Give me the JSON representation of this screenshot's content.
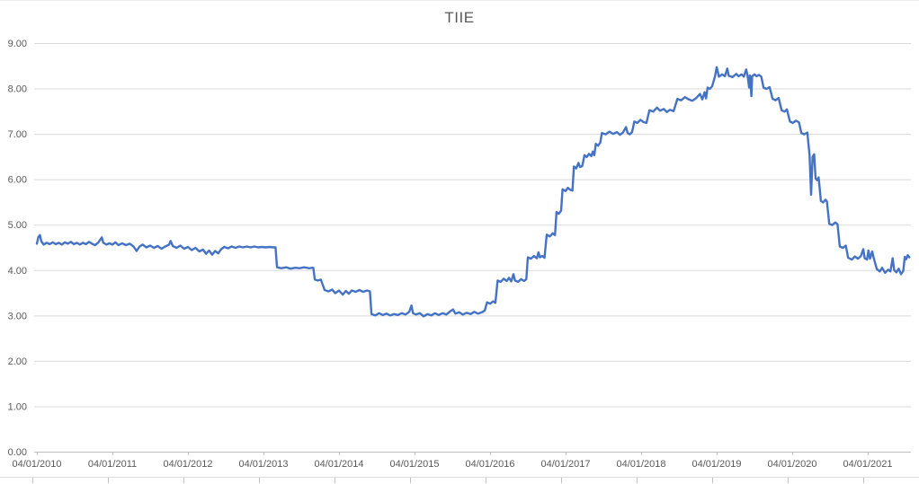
{
  "chart_data": {
    "type": "line",
    "title": "TIIE",
    "legend": "none",
    "grid": "horizontal",
    "ylim": [
      0,
      9
    ],
    "y_tick_step": 1,
    "y_tick_labels": [
      "0.00",
      "1.00",
      "2.00",
      "3.00",
      "4.00",
      "5.00",
      "6.00",
      "7.00",
      "8.00",
      "9.00"
    ],
    "x_tick_labels": [
      "04/01/2010",
      "04/01/2011",
      "04/01/2012",
      "04/01/2013",
      "04/01/2014",
      "04/01/2015",
      "04/01/2016",
      "04/01/2017",
      "04/01/2018",
      "04/01/2019",
      "04/01/2020",
      "04/01/2021"
    ],
    "x_unit": "years since 04/01/2010 (daily interbank rate series)",
    "xlim": [
      0,
      11.57
    ],
    "series": [
      {
        "name": "TIIE",
        "color": "#4472C4",
        "points": [
          [
            0.0,
            4.58
          ],
          [
            0.02,
            4.73
          ],
          [
            0.04,
            4.77
          ],
          [
            0.06,
            4.63
          ],
          [
            0.09,
            4.56
          ],
          [
            0.13,
            4.6
          ],
          [
            0.17,
            4.57
          ],
          [
            0.21,
            4.61
          ],
          [
            0.25,
            4.57
          ],
          [
            0.29,
            4.6
          ],
          [
            0.33,
            4.56
          ],
          [
            0.37,
            4.61
          ],
          [
            0.41,
            4.58
          ],
          [
            0.45,
            4.62
          ],
          [
            0.49,
            4.57
          ],
          [
            0.53,
            4.6
          ],
          [
            0.57,
            4.56
          ],
          [
            0.61,
            4.6
          ],
          [
            0.65,
            4.57
          ],
          [
            0.69,
            4.62
          ],
          [
            0.73,
            4.58
          ],
          [
            0.77,
            4.55
          ],
          [
            0.81,
            4.6
          ],
          [
            0.86,
            4.72
          ],
          [
            0.88,
            4.6
          ],
          [
            0.92,
            4.56
          ],
          [
            0.96,
            4.59
          ],
          [
            1.0,
            4.56
          ],
          [
            1.04,
            4.61
          ],
          [
            1.08,
            4.55
          ],
          [
            1.13,
            4.59
          ],
          [
            1.18,
            4.55
          ],
          [
            1.23,
            4.58
          ],
          [
            1.28,
            4.52
          ],
          [
            1.32,
            4.42
          ],
          [
            1.36,
            4.52
          ],
          [
            1.4,
            4.56
          ],
          [
            1.45,
            4.5
          ],
          [
            1.5,
            4.54
          ],
          [
            1.55,
            4.49
          ],
          [
            1.6,
            4.53
          ],
          [
            1.65,
            4.47
          ],
          [
            1.7,
            4.52
          ],
          [
            1.75,
            4.56
          ],
          [
            1.77,
            4.64
          ],
          [
            1.8,
            4.53
          ],
          [
            1.85,
            4.49
          ],
          [
            1.9,
            4.54
          ],
          [
            1.95,
            4.47
          ],
          [
            2.0,
            4.51
          ],
          [
            2.05,
            4.44
          ],
          [
            2.1,
            4.49
          ],
          [
            2.15,
            4.41
          ],
          [
            2.2,
            4.45
          ],
          [
            2.24,
            4.36
          ],
          [
            2.28,
            4.43
          ],
          [
            2.32,
            4.34
          ],
          [
            2.36,
            4.42
          ],
          [
            2.4,
            4.37
          ],
          [
            2.44,
            4.46
          ],
          [
            2.48,
            4.51
          ],
          [
            2.53,
            4.48
          ],
          [
            2.58,
            4.52
          ],
          [
            2.63,
            4.49
          ],
          [
            2.68,
            4.52
          ],
          [
            2.73,
            4.5
          ],
          [
            2.78,
            4.52
          ],
          [
            2.83,
            4.5
          ],
          [
            2.88,
            4.52
          ],
          [
            2.93,
            4.5
          ],
          [
            2.98,
            4.51
          ],
          [
            3.03,
            4.5
          ],
          [
            3.08,
            4.51
          ],
          [
            3.13,
            4.5
          ],
          [
            3.16,
            4.5
          ],
          [
            3.18,
            4.06
          ],
          [
            3.24,
            4.04
          ],
          [
            3.3,
            4.06
          ],
          [
            3.36,
            4.03
          ],
          [
            3.42,
            4.05
          ],
          [
            3.48,
            4.04
          ],
          [
            3.54,
            4.06
          ],
          [
            3.6,
            4.04
          ],
          [
            3.66,
            4.05
          ],
          [
            3.68,
            3.79
          ],
          [
            3.72,
            3.77
          ],
          [
            3.76,
            3.79
          ],
          [
            3.81,
            3.56
          ],
          [
            3.86,
            3.53
          ],
          [
            3.91,
            3.57
          ],
          [
            3.95,
            3.49
          ],
          [
            4.0,
            3.55
          ],
          [
            4.05,
            3.46
          ],
          [
            4.09,
            3.54
          ],
          [
            4.13,
            3.48
          ],
          [
            4.17,
            3.55
          ],
          [
            4.22,
            3.52
          ],
          [
            4.27,
            3.56
          ],
          [
            4.32,
            3.52
          ],
          [
            4.37,
            3.55
          ],
          [
            4.41,
            3.53
          ],
          [
            4.43,
            3.03
          ],
          [
            4.48,
            3.0
          ],
          [
            4.53,
            3.05
          ],
          [
            4.58,
            3.01
          ],
          [
            4.63,
            3.04
          ],
          [
            4.68,
            3.0
          ],
          [
            4.73,
            3.03
          ],
          [
            4.78,
            3.01
          ],
          [
            4.83,
            3.05
          ],
          [
            4.88,
            3.02
          ],
          [
            4.93,
            3.08
          ],
          [
            4.96,
            3.22
          ],
          [
            4.98,
            3.05
          ],
          [
            5.02,
            3.02
          ],
          [
            5.07,
            3.05
          ],
          [
            5.12,
            2.98
          ],
          [
            5.17,
            3.03
          ],
          [
            5.22,
            3.0
          ],
          [
            5.27,
            3.05
          ],
          [
            5.32,
            3.01
          ],
          [
            5.37,
            3.05
          ],
          [
            5.42,
            3.02
          ],
          [
            5.47,
            3.09
          ],
          [
            5.51,
            3.13
          ],
          [
            5.54,
            3.04
          ],
          [
            5.59,
            3.07
          ],
          [
            5.64,
            3.02
          ],
          [
            5.69,
            3.06
          ],
          [
            5.74,
            3.03
          ],
          [
            5.79,
            3.08
          ],
          [
            5.84,
            3.04
          ],
          [
            5.89,
            3.07
          ],
          [
            5.93,
            3.11
          ],
          [
            5.96,
            3.29
          ],
          [
            6.0,
            3.26
          ],
          [
            6.04,
            3.31
          ],
          [
            6.07,
            3.28
          ],
          [
            6.1,
            3.77
          ],
          [
            6.14,
            3.74
          ],
          [
            6.18,
            3.81
          ],
          [
            6.22,
            3.76
          ],
          [
            6.25,
            3.83
          ],
          [
            6.28,
            3.75
          ],
          [
            6.31,
            3.91
          ],
          [
            6.33,
            3.77
          ],
          [
            6.37,
            3.74
          ],
          [
            6.41,
            3.8
          ],
          [
            6.45,
            3.76
          ],
          [
            6.48,
            3.8
          ],
          [
            6.5,
            4.28
          ],
          [
            6.54,
            4.25
          ],
          [
            6.58,
            4.31
          ],
          [
            6.62,
            4.26
          ],
          [
            6.64,
            4.39
          ],
          [
            6.66,
            4.28
          ],
          [
            6.69,
            4.31
          ],
          [
            6.72,
            4.27
          ],
          [
            6.75,
            4.78
          ],
          [
            6.79,
            4.74
          ],
          [
            6.83,
            4.81
          ],
          [
            6.86,
            4.77
          ],
          [
            6.88,
            5.28
          ],
          [
            6.91,
            5.24
          ],
          [
            6.94,
            5.31
          ],
          [
            6.96,
            5.78
          ],
          [
            7.0,
            5.74
          ],
          [
            7.03,
            5.81
          ],
          [
            7.06,
            5.77
          ],
          [
            7.09,
            5.75
          ],
          [
            7.11,
            6.28
          ],
          [
            7.14,
            6.24
          ],
          [
            7.17,
            6.36
          ],
          [
            7.19,
            6.27
          ],
          [
            7.22,
            6.29
          ],
          [
            7.25,
            6.53
          ],
          [
            7.28,
            6.49
          ],
          [
            7.31,
            6.56
          ],
          [
            7.34,
            6.51
          ],
          [
            7.36,
            6.61
          ],
          [
            7.38,
            6.53
          ],
          [
            7.4,
            6.78
          ],
          [
            7.43,
            6.74
          ],
          [
            7.46,
            6.81
          ],
          [
            7.48,
            7.02
          ],
          [
            7.53,
            6.99
          ],
          [
            7.58,
            7.05
          ],
          [
            7.63,
            7.0
          ],
          [
            7.68,
            7.04
          ],
          [
            7.72,
            6.98
          ],
          [
            7.76,
            7.03
          ],
          [
            7.8,
            7.15
          ],
          [
            7.82,
            7.02
          ],
          [
            7.85,
            6.99
          ],
          [
            7.88,
            7.04
          ],
          [
            7.91,
            7.27
          ],
          [
            7.95,
            7.24
          ],
          [
            7.99,
            7.31
          ],
          [
            8.03,
            7.26
          ],
          [
            8.07,
            7.24
          ],
          [
            8.11,
            7.52
          ],
          [
            8.16,
            7.49
          ],
          [
            8.21,
            7.58
          ],
          [
            8.25,
            7.51
          ],
          [
            8.3,
            7.55
          ],
          [
            8.34,
            7.48
          ],
          [
            8.38,
            7.53
          ],
          [
            8.43,
            7.5
          ],
          [
            8.48,
            7.77
          ],
          [
            8.53,
            7.74
          ],
          [
            8.58,
            7.81
          ],
          [
            8.63,
            7.76
          ],
          [
            8.68,
            7.73
          ],
          [
            8.73,
            7.79
          ],
          [
            8.78,
            7.88
          ],
          [
            8.81,
            7.76
          ],
          [
            8.84,
            7.92
          ],
          [
            8.86,
            7.78
          ],
          [
            8.88,
            8.02
          ],
          [
            8.91,
            7.99
          ],
          [
            8.94,
            8.05
          ],
          [
            8.98,
            8.28
          ],
          [
            9.0,
            8.47
          ],
          [
            9.03,
            8.26
          ],
          [
            9.07,
            8.31
          ],
          [
            9.11,
            8.27
          ],
          [
            9.14,
            8.44
          ],
          [
            9.16,
            8.28
          ],
          [
            9.21,
            8.25
          ],
          [
            9.26,
            8.32
          ],
          [
            9.29,
            8.27
          ],
          [
            9.33,
            8.31
          ],
          [
            9.36,
            8.26
          ],
          [
            9.39,
            8.42
          ],
          [
            9.41,
            8.28
          ],
          [
            9.43,
            8.02
          ],
          [
            9.44,
            8.29
          ],
          [
            9.46,
            7.83
          ],
          [
            9.47,
            8.27
          ],
          [
            9.5,
            8.31
          ],
          [
            9.53,
            8.27
          ],
          [
            9.56,
            8.3
          ],
          [
            9.59,
            8.26
          ],
          [
            9.62,
            8.02
          ],
          [
            9.66,
            7.99
          ],
          [
            9.7,
            8.03
          ],
          [
            9.74,
            7.77
          ],
          [
            9.78,
            7.74
          ],
          [
            9.82,
            7.79
          ],
          [
            9.86,
            7.52
          ],
          [
            9.9,
            7.49
          ],
          [
            9.93,
            7.54
          ],
          [
            9.97,
            7.27
          ],
          [
            10.01,
            7.24
          ],
          [
            10.05,
            7.29
          ],
          [
            10.09,
            7.25
          ],
          [
            10.12,
            7.02
          ],
          [
            10.16,
            6.99
          ],
          [
            10.2,
            7.03
          ],
          [
            10.23,
            6.53
          ],
          [
            10.25,
            5.66
          ],
          [
            10.27,
            6.5
          ],
          [
            10.29,
            6.55
          ],
          [
            10.31,
            6.02
          ],
          [
            10.33,
            5.98
          ],
          [
            10.35,
            6.04
          ],
          [
            10.38,
            5.52
          ],
          [
            10.41,
            5.49
          ],
          [
            10.44,
            5.55
          ],
          [
            10.46,
            5.51
          ],
          [
            10.49,
            5.02
          ],
          [
            10.53,
            4.99
          ],
          [
            10.57,
            5.05
          ],
          [
            10.6,
            5.01
          ],
          [
            10.63,
            4.52
          ],
          [
            10.67,
            4.49
          ],
          [
            10.71,
            4.54
          ],
          [
            10.74,
            4.27
          ],
          [
            10.79,
            4.23
          ],
          [
            10.83,
            4.3
          ],
          [
            10.87,
            4.25
          ],
          [
            10.91,
            4.31
          ],
          [
            10.94,
            4.46
          ],
          [
            10.96,
            4.26
          ],
          [
            10.99,
            4.23
          ],
          [
            11.01,
            4.43
          ],
          [
            11.03,
            4.25
          ],
          [
            11.06,
            4.41
          ],
          [
            11.08,
            4.26
          ],
          [
            11.12,
            4.02
          ],
          [
            11.16,
            3.97
          ],
          [
            11.19,
            4.05
          ],
          [
            11.23,
            3.94
          ],
          [
            11.27,
            4.01
          ],
          [
            11.3,
            3.97
          ],
          [
            11.33,
            4.26
          ],
          [
            11.35,
            4.0
          ],
          [
            11.38,
            3.95
          ],
          [
            11.41,
            4.03
          ],
          [
            11.44,
            3.91
          ],
          [
            11.47,
            3.98
          ],
          [
            11.49,
            4.29
          ],
          [
            11.51,
            4.24
          ],
          [
            11.53,
            4.33
          ],
          [
            11.55,
            4.28
          ]
        ]
      }
    ]
  },
  "colors": {
    "series_line": "#4472C4",
    "gridline": "#D9D9D9",
    "axis_line": "#BFBFBF",
    "tick_mark": "#BFBFBF",
    "label_text": "#595959",
    "title_text": "#595959",
    "background": "#FFFFFF",
    "bottom_edge_line": "#D9D9D9"
  }
}
